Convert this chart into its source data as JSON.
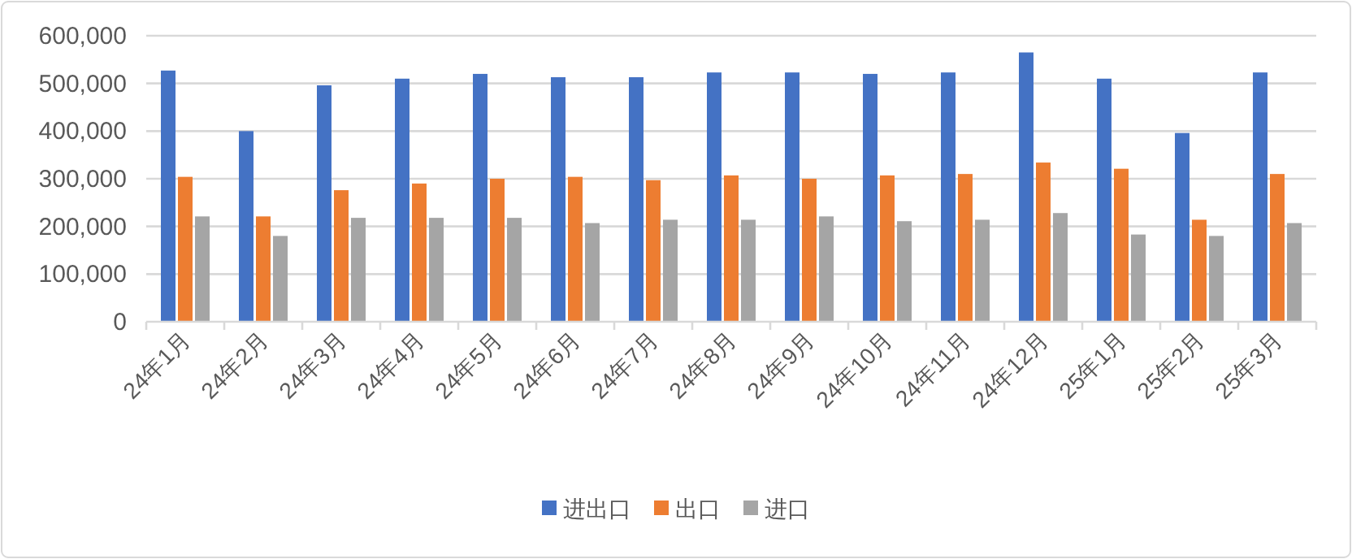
{
  "chart_data": {
    "type": "bar",
    "categories": [
      "24年1月",
      "24年2月",
      "24年3月",
      "24年4月",
      "24年5月",
      "24年6月",
      "24年7月",
      "24年8月",
      "24年9月",
      "24年10月",
      "24年11月",
      "24年12月",
      "25年1月",
      "25年2月",
      "25年3月"
    ],
    "series": [
      {
        "name": "进出口",
        "color": "#4472c4",
        "values": [
          527000,
          400000,
          496000,
          510000,
          520000,
          513000,
          513000,
          523000,
          523000,
          520000,
          523000,
          565000,
          510000,
          396000,
          523000
        ]
      },
      {
        "name": "出口",
        "color": "#ed7d31",
        "values": [
          304000,
          221000,
          276000,
          290000,
          300000,
          304000,
          297000,
          307000,
          300000,
          307000,
          310000,
          334000,
          321000,
          214000,
          310000
        ]
      },
      {
        "name": "进口",
        "color": "#a5a5a5",
        "values": [
          221000,
          180000,
          218000,
          218000,
          218000,
          207000,
          214000,
          214000,
          221000,
          211000,
          214000,
          228000,
          183000,
          180000,
          207000
        ]
      }
    ],
    "ylim": [
      0,
      600000
    ],
    "yticks": [
      {
        "value": 0,
        "label": "0"
      },
      {
        "value": 100000,
        "label": "100,000"
      },
      {
        "value": 200000,
        "label": "200,000"
      },
      {
        "value": 300000,
        "label": "300,000"
      },
      {
        "value": 400000,
        "label": "400,000"
      },
      {
        "value": 500000,
        "label": "500,000"
      },
      {
        "value": 600000,
        "label": "600,000"
      }
    ],
    "grid": "y",
    "legend": "bottom"
  }
}
